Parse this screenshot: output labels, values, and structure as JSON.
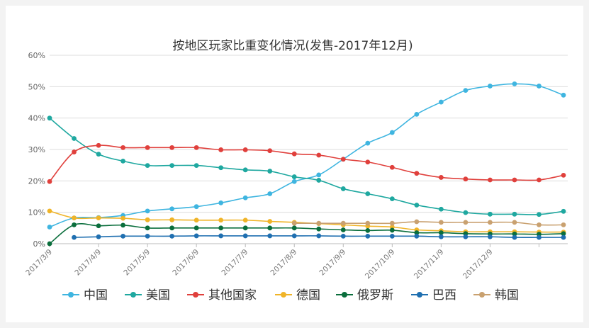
{
  "chart_data": {
    "type": "line",
    "title": "按地区玩家比重变化情况(发售-2017年12月)",
    "xlabel": "",
    "ylabel": "",
    "ylim": [
      0,
      60
    ],
    "yticks": [
      0,
      10,
      20,
      30,
      40,
      50,
      60
    ],
    "ytick_labels": [
      "0%",
      "10%",
      "20%",
      "30%",
      "40%",
      "50%",
      "60%"
    ],
    "x_count": 22,
    "x_tick_indices": [
      0,
      2,
      4,
      6,
      8,
      10,
      12,
      14,
      16,
      18,
      20
    ],
    "x_tick_labels": [
      "2017/3/9",
      "2017/4/9",
      "2017/5/9",
      "2017/6/9",
      "2017/7/9",
      "2017/8/9",
      "2017/9/9",
      "2017/10/9",
      "2017/11/9",
      "2017/12/9",
      ""
    ],
    "legend_position": "bottom",
    "series": [
      {
        "name": "中国",
        "color": "#3fb5e0",
        "start": 0,
        "values": [
          5.3,
          8.2,
          8.3,
          9.0,
          10.4,
          11.1,
          11.8,
          13.0,
          14.6,
          15.9,
          19.8,
          21.9,
          26.9,
          32.0,
          35.4,
          41.2,
          45.1,
          48.8,
          50.2,
          50.9,
          50.2,
          47.3
        ]
      },
      {
        "name": "美国",
        "color": "#1fa8a0",
        "start": 0,
        "values": [
          40.0,
          33.5,
          28.5,
          26.3,
          24.9,
          24.9,
          24.9,
          24.2,
          23.5,
          23.1,
          21.3,
          20.2,
          17.5,
          15.9,
          14.3,
          12.3,
          11.0,
          9.9,
          9.4,
          9.4,
          9.3,
          10.3
        ]
      },
      {
        "name": "其他国家",
        "color": "#e0403c",
        "start": 0,
        "values": [
          19.8,
          29.2,
          31.3,
          30.6,
          30.6,
          30.6,
          30.6,
          29.9,
          29.9,
          29.6,
          28.6,
          28.2,
          26.9,
          26.0,
          24.3,
          22.4,
          21.1,
          20.6,
          20.3,
          20.3,
          20.3,
          21.8
        ]
      },
      {
        "name": "德国",
        "color": "#f0b428",
        "start": 0,
        "values": [
          10.4,
          8.2,
          8.2,
          8.1,
          7.6,
          7.6,
          7.5,
          7.5,
          7.5,
          7.1,
          6.8,
          6.4,
          6.0,
          5.6,
          5.3,
          4.4,
          4.1,
          3.8,
          3.8,
          3.8,
          3.7,
          3.7
        ]
      },
      {
        "name": "俄罗斯",
        "color": "#0a6e3c",
        "start": 0,
        "values": [
          0.0,
          6.0,
          5.7,
          5.9,
          5.0,
          5.0,
          5.0,
          5.0,
          5.0,
          5.0,
          5.0,
          4.7,
          4.4,
          4.2,
          4.3,
          3.5,
          3.5,
          3.2,
          3.1,
          3.1,
          3.0,
          3.2
        ]
      },
      {
        "name": "巴西",
        "color": "#1f6fb0",
        "start": 1,
        "values": [
          2.0,
          2.2,
          2.4,
          2.4,
          2.4,
          2.5,
          2.5,
          2.5,
          2.5,
          2.5,
          2.5,
          2.4,
          2.4,
          2.4,
          2.4,
          2.2,
          2.2,
          2.2,
          2.0,
          2.0,
          2.0
        ]
      },
      {
        "name": "韩国",
        "color": "#c9a170",
        "start": 10,
        "values": [
          6.5,
          6.5,
          6.5,
          6.5,
          6.5,
          7.0,
          6.8,
          6.8,
          6.8,
          6.8,
          6.0,
          6.0
        ]
      }
    ]
  }
}
